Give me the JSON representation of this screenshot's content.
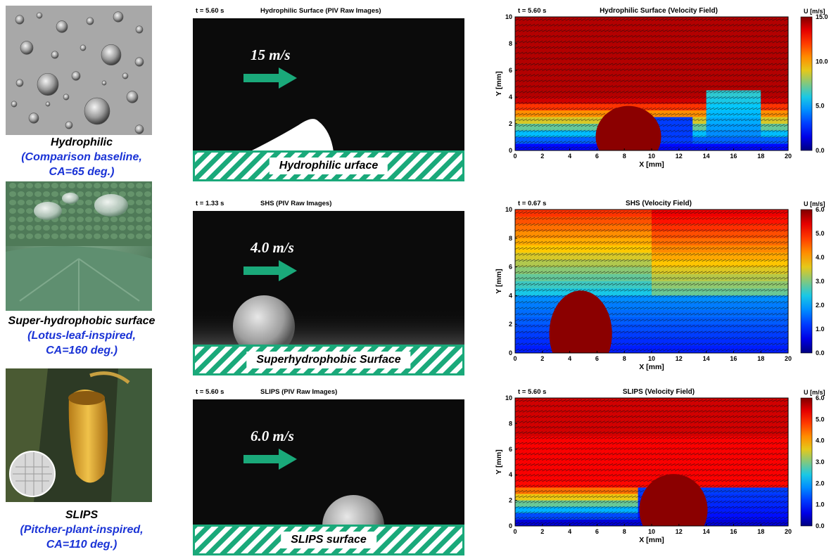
{
  "rows": [
    {
      "key": "hydrophilic",
      "caption_main": "Hydrophilic",
      "caption_sub1": "(Comparison baseline,",
      "caption_sub2": "CA=65 deg.)",
      "piv_time": "t = 5.60 s",
      "piv_title": "Hydrophilic Surface (PIV Raw Images)",
      "speed": "15 m/s",
      "surface_label": "Hydrophilic urface",
      "vel_time": "t = 5.60 s",
      "vel_title": "Hydrophilic Surface (Velocity Field)",
      "colorbar_label": "U [m/s]",
      "colorbar_ticks": [
        "15.0",
        "10.0",
        "5.0",
        "0.0"
      ]
    },
    {
      "key": "shs",
      "caption_main": "Super-hydrophobic surface",
      "caption_sub1": "(Lotus-leaf-inspired,",
      "caption_sub2": "CA=160 deg.)",
      "piv_time": "t = 1.33 s",
      "piv_title": "SHS (PIV Raw Images)",
      "speed": "4.0 m/s",
      "surface_label": "Superhydrophobic Surface",
      "vel_time": "t = 0.67 s",
      "vel_title": "SHS (Velocity Field)",
      "colorbar_label": "U [m/s]",
      "colorbar_ticks": [
        "6.0",
        "5.0",
        "4.0",
        "3.0",
        "2.0",
        "1.0",
        "0.0"
      ]
    },
    {
      "key": "slips",
      "caption_main": "SLIPS",
      "caption_sub1": "(Pitcher-plant-inspired,",
      "caption_sub2": "CA=110 deg.)",
      "piv_time": "t = 5.60 s",
      "piv_title": "SLIPS (PIV Raw Images)",
      "speed": "6.0 m/s",
      "surface_label": "SLIPS surface",
      "vel_time": "t = 5.60 s",
      "vel_title": "SLIPS (Velocity Field)",
      "colorbar_label": "U [m/s]",
      "colorbar_ticks": [
        "6.0",
        "5.0",
        "4.0",
        "3.0",
        "2.0",
        "1.0",
        "0.0"
      ]
    }
  ],
  "axes": {
    "xlabel": "X [mm]",
    "ylabel": "Y [mm]",
    "xticks": [
      "0",
      "2",
      "4",
      "6",
      "8",
      "10",
      "12",
      "14",
      "16",
      "18",
      "20"
    ],
    "yticks": [
      "0",
      "2",
      "4",
      "6",
      "8",
      "10"
    ]
  },
  "chart_data": [
    {
      "type": "heatmap",
      "title": "Hydrophilic Surface (Velocity Field)",
      "xlabel": "X [mm]",
      "ylabel": "Y [mm]",
      "xlim": [
        0,
        20
      ],
      "ylim": [
        0,
        10
      ],
      "colorbar_range": [
        0,
        15
      ],
      "colormap": "jet"
    },
    {
      "type": "heatmap",
      "title": "SHS (Velocity Field)",
      "xlabel": "X [mm]",
      "ylabel": "Y [mm]",
      "xlim": [
        0,
        20
      ],
      "ylim": [
        0,
        10
      ],
      "colorbar_range": [
        0,
        6
      ],
      "colormap": "jet"
    },
    {
      "type": "heatmap",
      "title": "SLIPS (Velocity Field)",
      "xlabel": "X [mm]",
      "ylabel": "Y [mm]",
      "xlim": [
        0,
        20
      ],
      "ylim": [
        0,
        10
      ],
      "colorbar_range": [
        0,
        6
      ],
      "colormap": "jet"
    }
  ],
  "colors": {
    "arrow": "#1aa97a",
    "wall_hatch": "#1aa97a",
    "caption_sub": "#1a33d6",
    "droplet": "#8b0000"
  }
}
